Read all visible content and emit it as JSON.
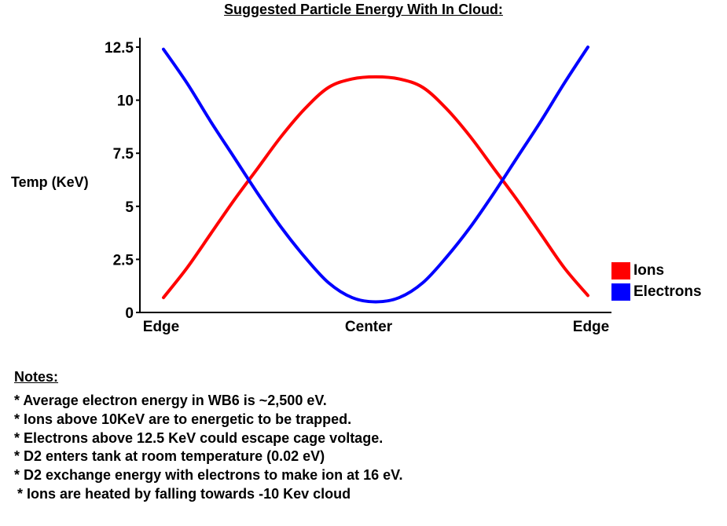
{
  "chart_data": {
    "type": "line",
    "title": "Suggested Particle Energy With In Cloud:",
    "ylabel": "Temp (KeV)",
    "xlabel": "",
    "ylim": [
      0,
      12.5
    ],
    "yticks": [
      "0",
      "2.5",
      "5",
      "7.5",
      "10",
      "12.5"
    ],
    "ytick_values": [
      0,
      2.5,
      5,
      7.5,
      10,
      12.5
    ],
    "xticks": [
      "Edge",
      "Center",
      "Edge"
    ],
    "xlim": [
      0,
      1
    ],
    "legend_position": "right",
    "series": [
      {
        "name": "Ions",
        "color": "#ff0000",
        "x": [
          0.05,
          0.1,
          0.15,
          0.2,
          0.25,
          0.3,
          0.35,
          0.4,
          0.45,
          0.5,
          0.55,
          0.6,
          0.65,
          0.7,
          0.75,
          0.8,
          0.85,
          0.9,
          0.95
        ],
        "values": [
          0.7,
          2.1,
          3.7,
          5.3,
          6.8,
          8.3,
          9.6,
          10.6,
          11.0,
          11.1,
          11.0,
          10.6,
          9.6,
          8.3,
          6.8,
          5.3,
          3.7,
          2.1,
          0.8
        ]
      },
      {
        "name": "Electrons",
        "color": "#0000ff",
        "x": [
          0.05,
          0.1,
          0.15,
          0.2,
          0.25,
          0.3,
          0.35,
          0.4,
          0.45,
          0.5,
          0.55,
          0.6,
          0.65,
          0.7,
          0.75,
          0.8,
          0.85,
          0.9,
          0.95
        ],
        "values": [
          12.4,
          10.8,
          9.0,
          7.3,
          5.6,
          4.0,
          2.6,
          1.4,
          0.7,
          0.5,
          0.7,
          1.4,
          2.6,
          4.0,
          5.6,
          7.3,
          9.0,
          10.8,
          12.5
        ]
      }
    ]
  },
  "notes": {
    "title": "Notes:",
    "items": [
      "* Average electron energy in WB6 is ~2,500 eV.",
      "* Ions above 10KeV are to energetic to be trapped.",
      "* Electrons above 12.5 KeV could escape cage voltage.",
      "* D2 enters tank at room temperature (0.02 eV)",
      "* D2 exchange energy with electrons to make ion at 16 eV.",
      "* Ions are heated by falling towards -10 Kev cloud"
    ]
  }
}
